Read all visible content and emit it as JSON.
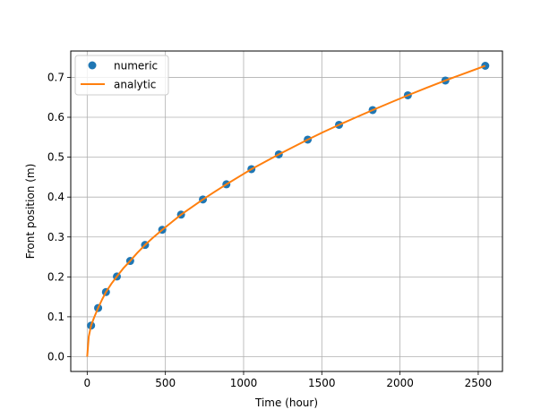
{
  "chart_data": {
    "type": "line",
    "xlabel": "Time (hour)",
    "ylabel": "Front position (m)",
    "xlim": [
      -105,
      2655
    ],
    "ylim": [
      -0.037,
      0.766
    ],
    "xticks": [
      0,
      500,
      1000,
      1500,
      2000,
      2500
    ],
    "yticks": [
      0.0,
      0.1,
      0.2,
      0.3,
      0.4,
      0.5,
      0.6,
      0.7
    ],
    "grid": true,
    "legend_position": "top-left",
    "series": [
      {
        "name": "numeric",
        "style": "markers",
        "color": "#1f77b4",
        "x": [
          25,
          70,
          120,
          190,
          275,
          370,
          480,
          600,
          740,
          890,
          1050,
          1225,
          1410,
          1610,
          1825,
          2050,
          2290,
          2545
        ],
        "y": [
          0.078,
          0.122,
          0.162,
          0.201,
          0.24,
          0.28,
          0.318,
          0.356,
          0.394,
          0.432,
          0.47,
          0.507,
          0.544,
          0.581,
          0.618,
          0.655,
          0.692,
          0.729
        ]
      },
      {
        "name": "analytic",
        "style": "line",
        "color": "#ff7f0e",
        "x": [
          0,
          10,
          25,
          45,
          70,
          95,
          120,
          155,
          190,
          230,
          275,
          320,
          370,
          420,
          480,
          540,
          600,
          670,
          740,
          810,
          890,
          970,
          1050,
          1140,
          1225,
          1320,
          1410,
          1510,
          1610,
          1720,
          1825,
          1940,
          2050,
          2170,
          2290,
          2420,
          2545
        ],
        "y": [
          0.0,
          0.05,
          0.078,
          0.099,
          0.122,
          0.143,
          0.162,
          0.183,
          0.201,
          0.221,
          0.24,
          0.26,
          0.28,
          0.298,
          0.318,
          0.337,
          0.356,
          0.375,
          0.394,
          0.412,
          0.432,
          0.451,
          0.47,
          0.489,
          0.507,
          0.526,
          0.544,
          0.563,
          0.581,
          0.6,
          0.618,
          0.637,
          0.655,
          0.674,
          0.692,
          0.711,
          0.729
        ]
      }
    ]
  }
}
